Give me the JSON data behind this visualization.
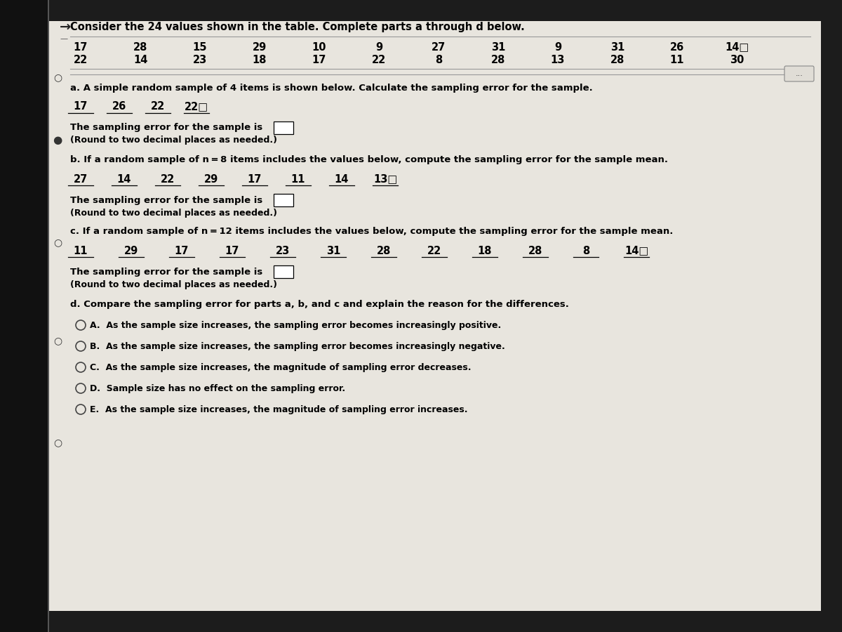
{
  "bg_outer": "#2a2a2a",
  "bg_content": "#e8e8e0",
  "left_bar_color": "#1a1a1a",
  "title": "Consider the 24 values shown in the table. Complete parts a through d below.",
  "table_row1": [
    "17",
    "28",
    "15",
    "29",
    "10",
    "9",
    "27",
    "31",
    "9",
    "31",
    "26",
    "14□"
  ],
  "table_row2": [
    "22",
    "14",
    "23",
    "18",
    "17",
    "22",
    "8",
    "28",
    "13",
    "28",
    "11",
    "30"
  ],
  "part_a_title": "a. A simple random sample of 4 items is shown below. Calculate the sampling error for the sample.",
  "part_a_values": [
    "17",
    "26",
    "22",
    "22□"
  ],
  "part_a_answer_text": "The sampling error for the sample is",
  "part_a_round_text": "(Round to two decimal places as needed.)",
  "part_b_title": "b. If a random sample of n = 8 items includes the values below, compute the sampling error for the sample mean.",
  "part_b_values": [
    "27",
    "14",
    "22",
    "29",
    "17",
    "11",
    "14",
    "13□"
  ],
  "part_b_answer_text": "The sampling error for the sample is",
  "part_b_round_text": "(Round to two decimal places as needed.)",
  "part_c_title": "c. If a random sample of n = 12 items includes the values below, compute the sampling error for the sample mean.",
  "part_c_values": [
    "11",
    "29",
    "17",
    "17",
    "23",
    "31",
    "28",
    "22",
    "18",
    "28",
    "8",
    "14□"
  ],
  "part_c_answer_text": "The sampling error for the sample is",
  "part_c_round_text": "(Round to two decimal places as needed.)",
  "part_d_title": "d. Compare the sampling error for parts a, b, and c and explain the reason for the differences.",
  "choices": [
    "A.  As the sample size increases, the sampling error becomes increasingly positive.",
    "B.  As the sample size increases, the sampling error becomes increasingly negative.",
    "C.  As the sample size increases, the magnitude of sampling error decreases.",
    "D.  Sample size has no effect on the sampling error.",
    "E.  As the sample size increases, the magnitude of sampling error increases."
  ],
  "arrow_icon": "→",
  "radio_filled": "●",
  "radio_empty": "○",
  "font_size_title": 10.5,
  "font_size_body": 9.5,
  "font_size_values": 10.5,
  "font_size_small": 9.0
}
